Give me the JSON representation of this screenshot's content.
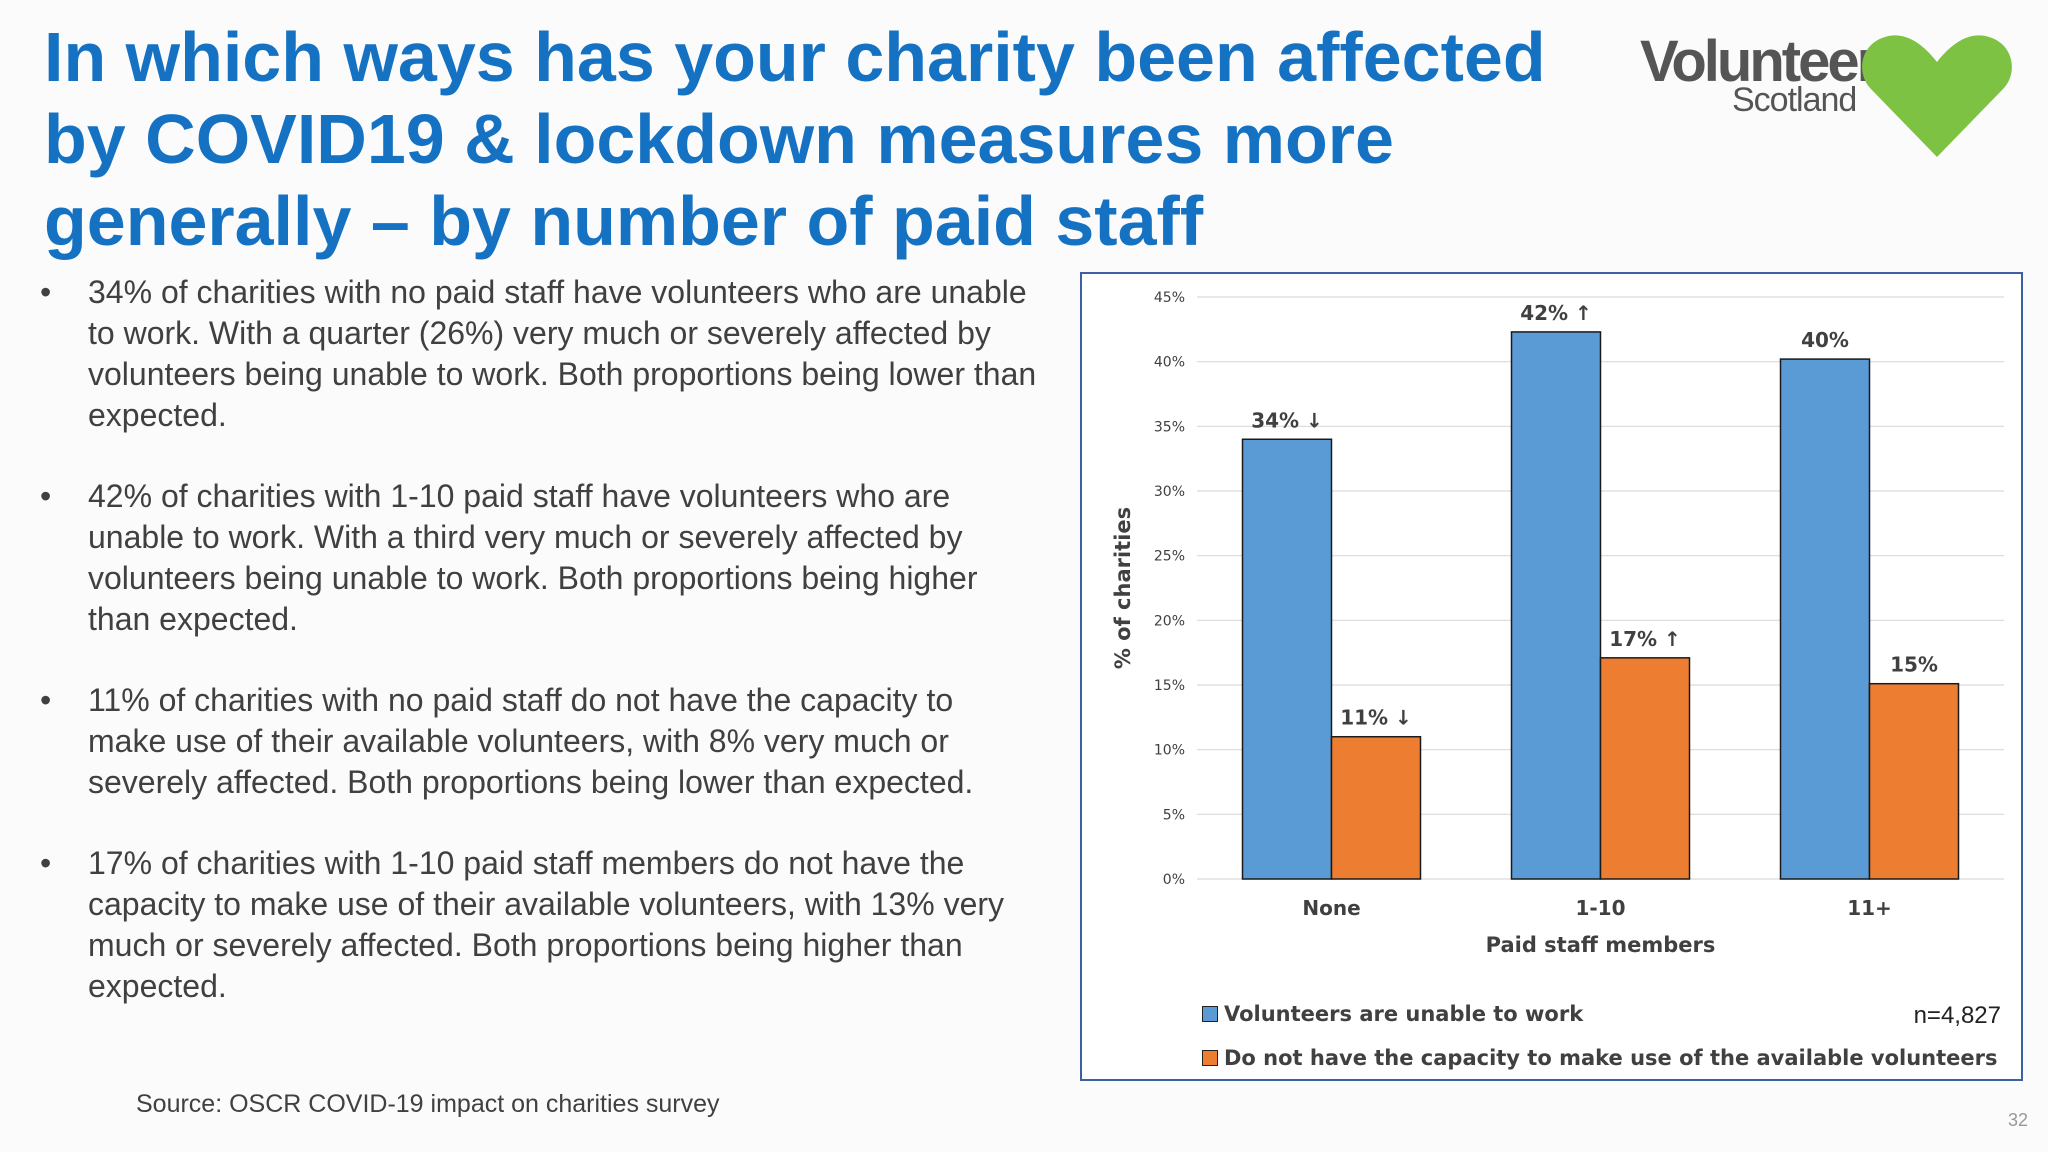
{
  "slide": {
    "title": "In which ways has your charity been affected by COVID19 & lockdown measures more generally – by number of paid staff",
    "logo": {
      "word1": "Volunteer",
      "word2": "Scotland",
      "heart_color": "#7dc242"
    },
    "bullets": [
      "34% of charities with no paid staff have volunteers who are unable to work. With a quarter (26%) very much or severely affected by volunteers being unable to work. Both proportions being lower than expected.",
      "42% of charities with 1-10 paid staff have volunteers who are unable to work. With a third very much or severely affected by volunteers being unable to work. Both proportions being higher than expected.",
      "11% of charities with no paid staff do not have the capacity to make use of their available volunteers, with 8% very much or severely affected. Both proportions being lower than expected.",
      "17% of charities with 1-10 paid staff members do not have the capacity to make use of their available volunteers, with 13% very much or severely affected. Both proportions being higher than expected."
    ],
    "source": "Source: OSCR COVID-19 impact on charities survey",
    "page_number": "32",
    "n_label": "n=4,827"
  },
  "chart_data": {
    "type": "bar",
    "categories": [
      "None",
      "1-10",
      "11+"
    ],
    "xlabel": "Paid staff members",
    "ylabel": "% of charities",
    "ylim": [
      0,
      45
    ],
    "yticks": [
      "0%",
      "5%",
      "10%",
      "15%",
      "20%",
      "25%",
      "30%",
      "35%",
      "40%",
      "45%"
    ],
    "grid": true,
    "legend_position": "bottom",
    "series": [
      {
        "name": "Volunteers are unable to work",
        "color": "#5b9bd5",
        "values": [
          34,
          42.3,
          40.2
        ],
        "labels": [
          "34% ↓",
          "42% ↑",
          "40%"
        ]
      },
      {
        "name": "Do not have the capacity to make use of the available volunteers",
        "color": "#ed7d31",
        "values": [
          11,
          17.1,
          15.1
        ],
        "labels": [
          "11% ↓",
          "17% ↑",
          "15%"
        ]
      }
    ]
  }
}
